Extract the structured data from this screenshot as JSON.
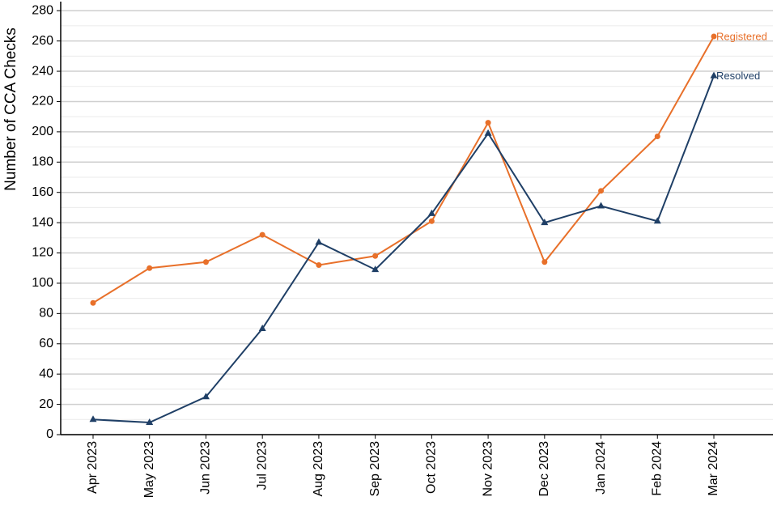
{
  "chart_data": {
    "type": "line",
    "y_label": "Number of CCA Checks",
    "categories": [
      "Apr 2023",
      "May 2023",
      "Jun 2023",
      "Jul 2023",
      "Aug 2023",
      "Sep 2023",
      "Oct 2023",
      "Nov 2023",
      "Dec 2023",
      "Jan 2024",
      "Feb 2024",
      "Mar 2024"
    ],
    "series": [
      {
        "name": "Registered",
        "color": "#e8702a",
        "marker": "circle",
        "values": [
          87,
          110,
          114,
          132,
          112,
          118,
          141,
          206,
          114,
          161,
          197,
          263
        ]
      },
      {
        "name": "Resolved",
        "color": "#1f3f66",
        "marker": "triangle",
        "values": [
          10,
          8,
          25,
          70,
          127,
          109,
          146,
          199,
          140,
          151,
          141,
          237
        ]
      }
    ],
    "ylim": [
      0,
      286
    ],
    "yticks": [
      0,
      20,
      40,
      60,
      80,
      100,
      120,
      140,
      160,
      180,
      200,
      220,
      240,
      260,
      280
    ],
    "y_minor_ticks": [
      10,
      30,
      50,
      70,
      90,
      110,
      130,
      150,
      170,
      190,
      210,
      230,
      250,
      270
    ],
    "grid": true,
    "legend": "line-end"
  }
}
